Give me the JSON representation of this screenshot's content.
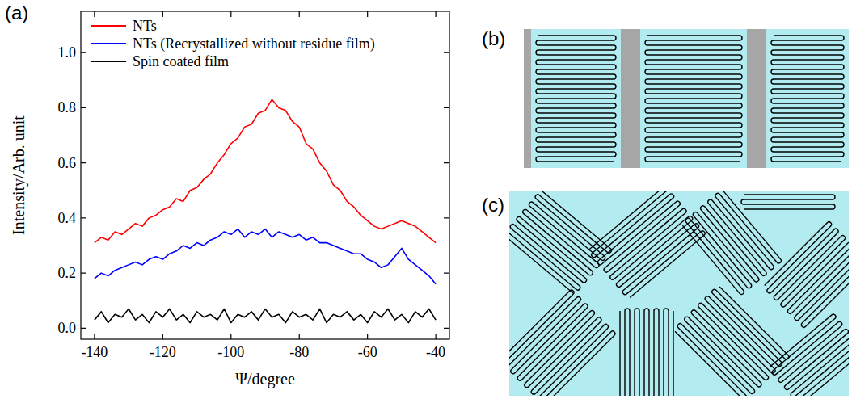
{
  "chart_data": {
    "type": "line",
    "panel_label": "(a)",
    "x_label": "Ψ/degree",
    "y_label": "Intensity/Arb. unit",
    "x": [
      -140,
      -138,
      -136,
      -134,
      -132,
      -130,
      -128,
      -126,
      -124,
      -122,
      -120,
      -118,
      -116,
      -114,
      -112,
      -110,
      -108,
      -106,
      -104,
      -102,
      -100,
      -98,
      -96,
      -94,
      -92,
      -90,
      -88,
      -86,
      -84,
      -82,
      -80,
      -78,
      -76,
      -74,
      -72,
      -70,
      -68,
      -66,
      -64,
      -62,
      -60,
      -58,
      -56,
      -54,
      -52,
      -50,
      -48,
      -46,
      -44,
      -42,
      -40
    ],
    "series": [
      {
        "name": "NTs",
        "color": "#ff0000",
        "values": [
          0.31,
          0.33,
          0.32,
          0.35,
          0.34,
          0.36,
          0.38,
          0.37,
          0.4,
          0.41,
          0.43,
          0.44,
          0.47,
          0.46,
          0.5,
          0.51,
          0.54,
          0.56,
          0.6,
          0.63,
          0.67,
          0.69,
          0.73,
          0.74,
          0.78,
          0.79,
          0.83,
          0.8,
          0.79,
          0.75,
          0.73,
          0.67,
          0.65,
          0.6,
          0.57,
          0.52,
          0.5,
          0.46,
          0.44,
          0.41,
          0.39,
          0.37,
          0.36,
          0.37,
          0.38,
          0.39,
          0.38,
          0.37,
          0.35,
          0.33,
          0.31
        ]
      },
      {
        "name": "NTs (Recrystallized without residue film)",
        "color": "#0000ff",
        "values": [
          0.18,
          0.2,
          0.19,
          0.21,
          0.22,
          0.23,
          0.24,
          0.23,
          0.25,
          0.26,
          0.25,
          0.27,
          0.28,
          0.3,
          0.29,
          0.31,
          0.3,
          0.32,
          0.33,
          0.35,
          0.34,
          0.36,
          0.33,
          0.35,
          0.34,
          0.36,
          0.33,
          0.35,
          0.34,
          0.33,
          0.34,
          0.32,
          0.33,
          0.31,
          0.31,
          0.3,
          0.29,
          0.28,
          0.27,
          0.27,
          0.25,
          0.24,
          0.22,
          0.23,
          0.26,
          0.29,
          0.25,
          0.23,
          0.21,
          0.19,
          0.16
        ]
      },
      {
        "name": "Spin coated film",
        "color": "#000000",
        "values": [
          0.03,
          0.06,
          0.02,
          0.05,
          0.04,
          0.07,
          0.03,
          0.05,
          0.02,
          0.06,
          0.04,
          0.07,
          0.03,
          0.05,
          0.02,
          0.06,
          0.04,
          0.05,
          0.03,
          0.07,
          0.02,
          0.05,
          0.04,
          0.06,
          0.03,
          0.07,
          0.04,
          0.05,
          0.02,
          0.06,
          0.04,
          0.05,
          0.03,
          0.07,
          0.02,
          0.05,
          0.04,
          0.06,
          0.03,
          0.05,
          0.02,
          0.06,
          0.04,
          0.07,
          0.03,
          0.05,
          0.02,
          0.06,
          0.04,
          0.07,
          0.03
        ]
      }
    ],
    "xlim": [
      -144,
      -36
    ],
    "ylim": [
      -0.04,
      1.15
    ],
    "xticks": [
      -140,
      -120,
      -100,
      -80,
      -60,
      -40
    ],
    "yticks": [
      {
        "value": 0,
        "label": "0.0"
      },
      {
        "value": 0.2,
        "label": "0.2"
      },
      {
        "value": 0.4,
        "label": "0.4"
      },
      {
        "value": 0.6,
        "label": "0.6"
      },
      {
        "value": 0.8,
        "label": "0.8"
      },
      {
        "value": 1.0,
        "label": "1.0"
      }
    ],
    "grid": false,
    "legend": "top-left"
  },
  "diagrams": [
    {
      "label": "(b)"
    },
    {
      "label": "(c)"
    }
  ]
}
